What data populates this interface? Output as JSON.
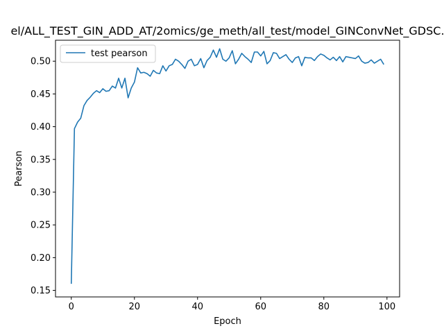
{
  "chart_data": {
    "type": "line",
    "title": "el/ALL_TEST_GIN_ADD_AT/2omics/ge_meth/all_test/model_GINConvNet_GDSC.",
    "xlabel": "Epoch",
    "ylabel": "Pearson",
    "xlim": [
      -5,
      104
    ],
    "ylim": [
      0.14,
      0.532
    ],
    "xticks": [
      0,
      20,
      40,
      60,
      80,
      100
    ],
    "yticks": [
      0.15,
      0.2,
      0.25,
      0.3,
      0.35,
      0.4,
      0.45,
      0.5
    ],
    "ytick_labels": [
      "0.15",
      "0.20",
      "0.25",
      "0.30",
      "0.35",
      "0.40",
      "0.45",
      "0.50"
    ],
    "grid": false,
    "legend_position": "top-left",
    "series": [
      {
        "name": "test pearson",
        "color": "#1f77b4",
        "x": [
          0,
          1,
          2,
          3,
          4,
          5,
          6,
          7,
          8,
          9,
          10,
          11,
          12,
          13,
          14,
          15,
          16,
          17,
          18,
          19,
          20,
          21,
          22,
          23,
          24,
          25,
          26,
          27,
          28,
          29,
          30,
          31,
          32,
          33,
          34,
          35,
          36,
          37,
          38,
          39,
          40,
          41,
          42,
          43,
          44,
          45,
          46,
          47,
          48,
          49,
          50,
          51,
          52,
          53,
          54,
          55,
          56,
          57,
          58,
          59,
          60,
          61,
          62,
          63,
          64,
          65,
          66,
          67,
          68,
          69,
          70,
          71,
          72,
          73,
          74,
          75,
          76,
          77,
          78,
          79,
          80,
          81,
          82,
          83,
          84,
          85,
          86,
          87,
          88,
          89,
          90,
          91,
          92,
          93,
          94,
          95,
          96,
          97,
          98,
          99
        ],
        "values": [
          0.16,
          0.397,
          0.407,
          0.413,
          0.432,
          0.44,
          0.445,
          0.451,
          0.455,
          0.452,
          0.458,
          0.454,
          0.455,
          0.462,
          0.459,
          0.474,
          0.459,
          0.474,
          0.444,
          0.459,
          0.468,
          0.49,
          0.482,
          0.483,
          0.481,
          0.477,
          0.486,
          0.482,
          0.481,
          0.493,
          0.485,
          0.493,
          0.495,
          0.503,
          0.5,
          0.495,
          0.489,
          0.5,
          0.503,
          0.493,
          0.495,
          0.504,
          0.49,
          0.501,
          0.506,
          0.517,
          0.506,
          0.519,
          0.503,
          0.5,
          0.505,
          0.516,
          0.496,
          0.503,
          0.512,
          0.507,
          0.503,
          0.498,
          0.514,
          0.514,
          0.508,
          0.515,
          0.496,
          0.501,
          0.513,
          0.512,
          0.504,
          0.507,
          0.51,
          0.503,
          0.498,
          0.505,
          0.507,
          0.493,
          0.506,
          0.505,
          0.505,
          0.501,
          0.507,
          0.511,
          0.509,
          0.505,
          0.502,
          0.506,
          0.501,
          0.507,
          0.499,
          0.507,
          0.506,
          0.505,
          0.504,
          0.508,
          0.5,
          0.497,
          0.498,
          0.502,
          0.497,
          0.5,
          0.503,
          0.495
        ]
      }
    ]
  }
}
